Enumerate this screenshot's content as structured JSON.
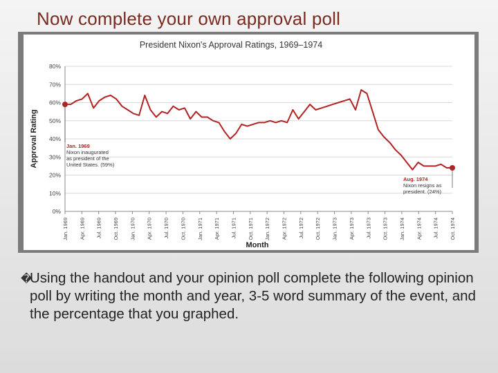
{
  "slide": {
    "title": "Now complete your own approval poll",
    "bullet_glyph": "�",
    "body_text": "Using the handout and your opinion poll complete the following opinion poll by writing the month and year, 3-5 word summary of the event, and the percentage that you graphed."
  },
  "chart_data": {
    "type": "line",
    "title": "President Nixon's Approval Ratings, 1969–1974",
    "xlabel": "Month",
    "ylabel": "Approval Rating",
    "ylim": [
      0,
      80
    ],
    "y_ticks": [
      "0%",
      "10%",
      "20%",
      "30%",
      "40%",
      "50%",
      "60%",
      "70%",
      "80%"
    ],
    "grid": true,
    "series_color": "#b22222",
    "x_tick_labels": [
      "Jan. 1969",
      "Apr. 1969",
      "Jul. 1969",
      "Oct. 1969",
      "Jan. 1970",
      "Apr. 1970",
      "Jul. 1970",
      "Oct. 1970",
      "Jan. 1971",
      "Apr. 1971",
      "Jul. 1971",
      "Oct. 1971",
      "Jan. 1972",
      "Apr. 1972",
      "Jul. 1972",
      "Oct. 1972",
      "Jan. 1973",
      "Apr. 1973",
      "Jul. 1973",
      "Oct. 1973",
      "Jan. 1974",
      "Apr. 1974",
      "Jul. 1974",
      "Oct. 1974"
    ],
    "x": [
      0,
      1,
      2,
      3,
      4,
      5,
      6,
      7,
      8,
      9,
      10,
      11,
      12,
      13,
      14,
      15,
      16,
      17,
      18,
      19,
      20,
      21,
      22,
      23,
      24,
      25,
      26,
      27,
      28,
      29,
      30,
      31,
      32,
      33,
      34,
      35,
      36,
      37,
      38,
      39,
      40,
      41,
      42,
      43,
      44,
      45,
      46,
      47,
      48,
      49,
      50,
      51,
      52,
      53,
      54,
      55,
      56,
      57,
      58,
      59,
      60,
      61,
      62,
      63,
      64,
      65,
      66,
      67,
      68
    ],
    "values": [
      59,
      59,
      61,
      62,
      65,
      57,
      61,
      63,
      64,
      62,
      58,
      56,
      54,
      53,
      64,
      56,
      52,
      55,
      54,
      58,
      56,
      57,
      51,
      55,
      52,
      52,
      50,
      49,
      44,
      40,
      43,
      48,
      47,
      48,
      49,
      49,
      50,
      49,
      50,
      49,
      56,
      51,
      55,
      59,
      56,
      57,
      58,
      59,
      60,
      61,
      62,
      56,
      67,
      65,
      55,
      45,
      41,
      38,
      34,
      31,
      27,
      23,
      27,
      25,
      25,
      25,
      26,
      24,
      24
    ],
    "annotations": [
      {
        "heading": "Jan. 1969",
        "lines": [
          "Nixon inaugurated",
          "as president of the",
          "United States. (59%)"
        ],
        "value": 59
      },
      {
        "heading": "Aug. 1974",
        "lines": [
          "Nixon resigns as",
          "president. (24%)"
        ],
        "value": 24
      }
    ]
  }
}
